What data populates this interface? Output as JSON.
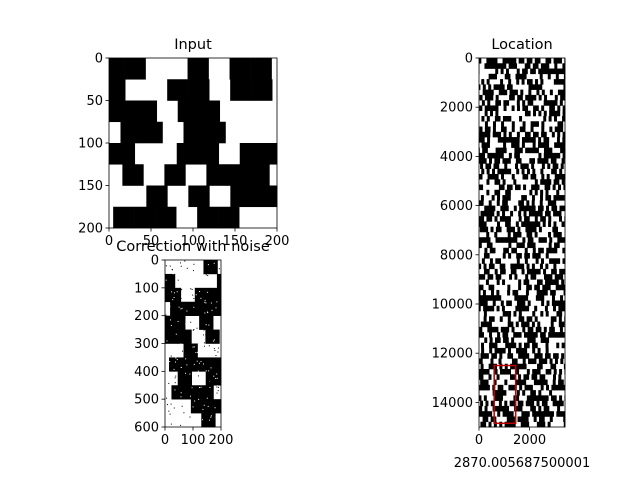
{
  "chart_data": [
    {
      "type": "heatmap",
      "title": "Input",
      "xlim": [
        0,
        200
      ],
      "ylim": [
        200,
        0
      ],
      "xticks": [
        "0",
        "50",
        "100",
        "150",
        "200"
      ],
      "yticks": [
        "0",
        "50",
        "100",
        "150",
        "200"
      ],
      "colormap": [
        "#ffffff",
        "#000000"
      ],
      "grid": false
    },
    {
      "type": "heatmap",
      "title": "Correction with noise",
      "xlim": [
        0,
        200
      ],
      "ylim": [
        600,
        0
      ],
      "xticks": [
        "0",
        "100",
        "200"
      ],
      "yticks": [
        "0",
        "100",
        "200",
        "300",
        "400",
        "500",
        "600"
      ],
      "colormap": [
        "#ffffff",
        "#000000"
      ],
      "grid": false
    },
    {
      "type": "heatmap",
      "title": "Location",
      "xlabel": "2870.005687500001",
      "xlim": [
        0,
        3400
      ],
      "ylim": [
        15000,
        0
      ],
      "xticks": [
        "0",
        "2000"
      ],
      "yticks": [
        "0",
        "2000",
        "4000",
        "6000",
        "8000",
        "10000",
        "12000",
        "14000"
      ],
      "colormap": [
        "#ffffff",
        "#000000"
      ],
      "grid": false,
      "highlight_box": {
        "x": [
          600,
          1450
        ],
        "y": [
          12500,
          14850
        ],
        "color": "#c00000"
      }
    }
  ]
}
